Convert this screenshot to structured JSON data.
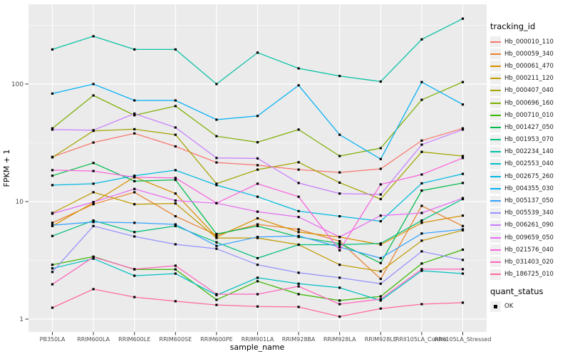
{
  "colors": {
    "panel_bg": "#EBEBEB",
    "grid": "#FFFFFF",
    "axis_text": "#4D4D4D",
    "axis_title": "#000000",
    "point": "#000000",
    "legend_key_bg": "#EFEFEF"
  },
  "chart_data": {
    "type": "line",
    "title": "",
    "x_axis": {
      "label": "sample_name",
      "categories": [
        "PB350LA",
        "RRIM600LA",
        "RRIM600LE",
        "RRIM600SE",
        "RRIM600PE",
        "RRIM901LA",
        "RRIM928BA",
        "RRIM928LA",
        "RRIM928LE",
        "RRII105LA_Control",
        "RRII105LA_Stressed"
      ]
    },
    "y_axis": {
      "label": "FPKM + 1",
      "scale": "log10",
      "ticks": [
        1,
        10,
        100
      ],
      "minor_ticks": [
        3.162,
        31.62,
        316.2
      ],
      "range": [
        0.85,
        470
      ]
    },
    "legend": {
      "title": "tracking_id",
      "position": "right"
    },
    "quant_legend": {
      "title": "quant_status",
      "items": [
        "OK"
      ]
    },
    "grid": true,
    "point_shape": "filled-square-black",
    "series": [
      {
        "tracking_id": "Hb_000010_110",
        "color": "#F8766D",
        "quant_status": "OK",
        "values": [
          24,
          31.8,
          38,
          29.5,
          21.5,
          20.4,
          18.7,
          17.7,
          19,
          33,
          42
        ]
      },
      {
        "tracking_id": "Hb_000059_340",
        "color": "#EA8331",
        "quant_status": "OK",
        "values": [
          6.6,
          9.5,
          12.0,
          7.5,
          5.2,
          6.4,
          5.8,
          4.6,
          2.2,
          9.2,
          6.2
        ]
      },
      {
        "tracking_id": "Hb_000061_470",
        "color": "#D89000",
        "quant_status": "OK",
        "values": [
          6.2,
          9.8,
          16.2,
          11.7,
          5.0,
          7.2,
          5.5,
          5.0,
          4.3,
          6.6,
          7.6
        ]
      },
      {
        "tracking_id": "Hb_000211_120",
        "color": "#C09B00",
        "quant_status": "OK",
        "values": [
          8.0,
          12.0,
          9.5,
          9.65,
          4.9,
          4.9,
          4.3,
          2.9,
          2.55,
          4.65,
          5.7
        ]
      },
      {
        "tracking_id": "Hb_000407_040",
        "color": "#A3A500",
        "quant_status": "OK",
        "values": [
          23.8,
          40,
          41.3,
          37,
          14.2,
          18.7,
          21.6,
          14.5,
          10.5,
          26.5,
          24.4
        ]
      },
      {
        "tracking_id": "Hb_000696_160",
        "color": "#7CAE00",
        "quant_status": "OK",
        "values": [
          42,
          80,
          54.3,
          65,
          36,
          32,
          41,
          24.4,
          28.5,
          73.5,
          104
        ]
      },
      {
        "tracking_id": "Hb_000710_010",
        "color": "#39B600",
        "quant_status": "OK",
        "values": [
          2.9,
          3.4,
          2.65,
          2.65,
          1.46,
          2.1,
          1.63,
          1.44,
          1.56,
          2.97,
          3.9
        ]
      },
      {
        "tracking_id": "Hb_001427_050",
        "color": "#00BB4E",
        "quant_status": "OK",
        "values": [
          16.6,
          21.3,
          14.9,
          15.3,
          5.3,
          6.2,
          5.0,
          4.4,
          3.0,
          12.4,
          14.4
        ]
      },
      {
        "tracking_id": "Hb_001953_070",
        "color": "#00BF7D",
        "quant_status": "OK",
        "values": [
          5.1,
          6.9,
          5.5,
          6.2,
          4.5,
          3.3,
          4.3,
          4.3,
          4.4,
          6.9,
          10.5
        ]
      },
      {
        "tracking_id": "Hb_002234_140",
        "color": "#00C1A3",
        "quant_status": "OK",
        "values": [
          197,
          255,
          197,
          197,
          100,
          185,
          136,
          117,
          105,
          240,
          360
        ]
      },
      {
        "tracking_id": "Hb_002553_040",
        "color": "#00BFC4",
        "quant_status": "OK",
        "values": [
          2.7,
          3.27,
          2.34,
          2.44,
          1.6,
          2.25,
          2.0,
          1.85,
          1.44,
          2.58,
          2.44
        ]
      },
      {
        "tracking_id": "Hb_002675_260",
        "color": "#00BAE0",
        "quant_status": "OK",
        "values": [
          13.8,
          14.2,
          16.6,
          18.5,
          13.8,
          11.0,
          8.3,
          7.5,
          6.8,
          14.3,
          17.2
        ]
      },
      {
        "tracking_id": "Hb_004355_030",
        "color": "#00B0F6",
        "quant_status": "OK",
        "values": [
          83,
          100,
          72.5,
          72.5,
          49.8,
          53.5,
          97.5,
          37,
          23,
          104,
          67
        ]
      },
      {
        "tracking_id": "Hb_005137_050",
        "color": "#35A2FF",
        "quant_status": "OK",
        "values": [
          6.3,
          6.7,
          6.6,
          6.4,
          4.2,
          5.0,
          5.1,
          4.1,
          3.3,
          5.35,
          5.8
        ]
      },
      {
        "tracking_id": "Hb_005539_340",
        "color": "#9590FF",
        "quant_status": "OK",
        "values": [
          2.52,
          6.2,
          5.05,
          4.33,
          3.97,
          2.9,
          2.48,
          2.25,
          2.0,
          3.77,
          3.19
        ]
      },
      {
        "tracking_id": "Hb_006261_090",
        "color": "#C77CFF",
        "quant_status": "OK",
        "values": [
          41,
          40.5,
          56,
          42.7,
          23.5,
          23.3,
          14.4,
          11.7,
          11.5,
          30.5,
          41
        ]
      },
      {
        "tracking_id": "Hb_009659_050",
        "color": "#E76BF3",
        "quant_status": "OK",
        "values": [
          7.9,
          9.9,
          12.8,
          10.2,
          9.7,
          8.2,
          7.4,
          5.0,
          7.6,
          8.0,
          10.7
        ]
      },
      {
        "tracking_id": "Hb_021576_040",
        "color": "#FA62DB",
        "quant_status": "OK",
        "values": [
          18.5,
          18.2,
          16.1,
          15.9,
          9.7,
          14.2,
          11.0,
          3.85,
          14.0,
          17.0,
          23.5
        ]
      },
      {
        "tracking_id": "Hb_031403_020",
        "color": "#FF62BC",
        "quant_status": "OK",
        "values": [
          1.98,
          3.37,
          2.66,
          2.85,
          1.63,
          1.63,
          1.9,
          1.34,
          1.48,
          2.66,
          2.66
        ]
      },
      {
        "tracking_id": "Hb_186725_010",
        "color": "#FF6A98",
        "quant_status": "OK",
        "values": [
          1.25,
          1.8,
          1.54,
          1.42,
          1.32,
          1.28,
          1.27,
          1.05,
          1.23,
          1.34,
          1.38
        ]
      }
    ]
  }
}
